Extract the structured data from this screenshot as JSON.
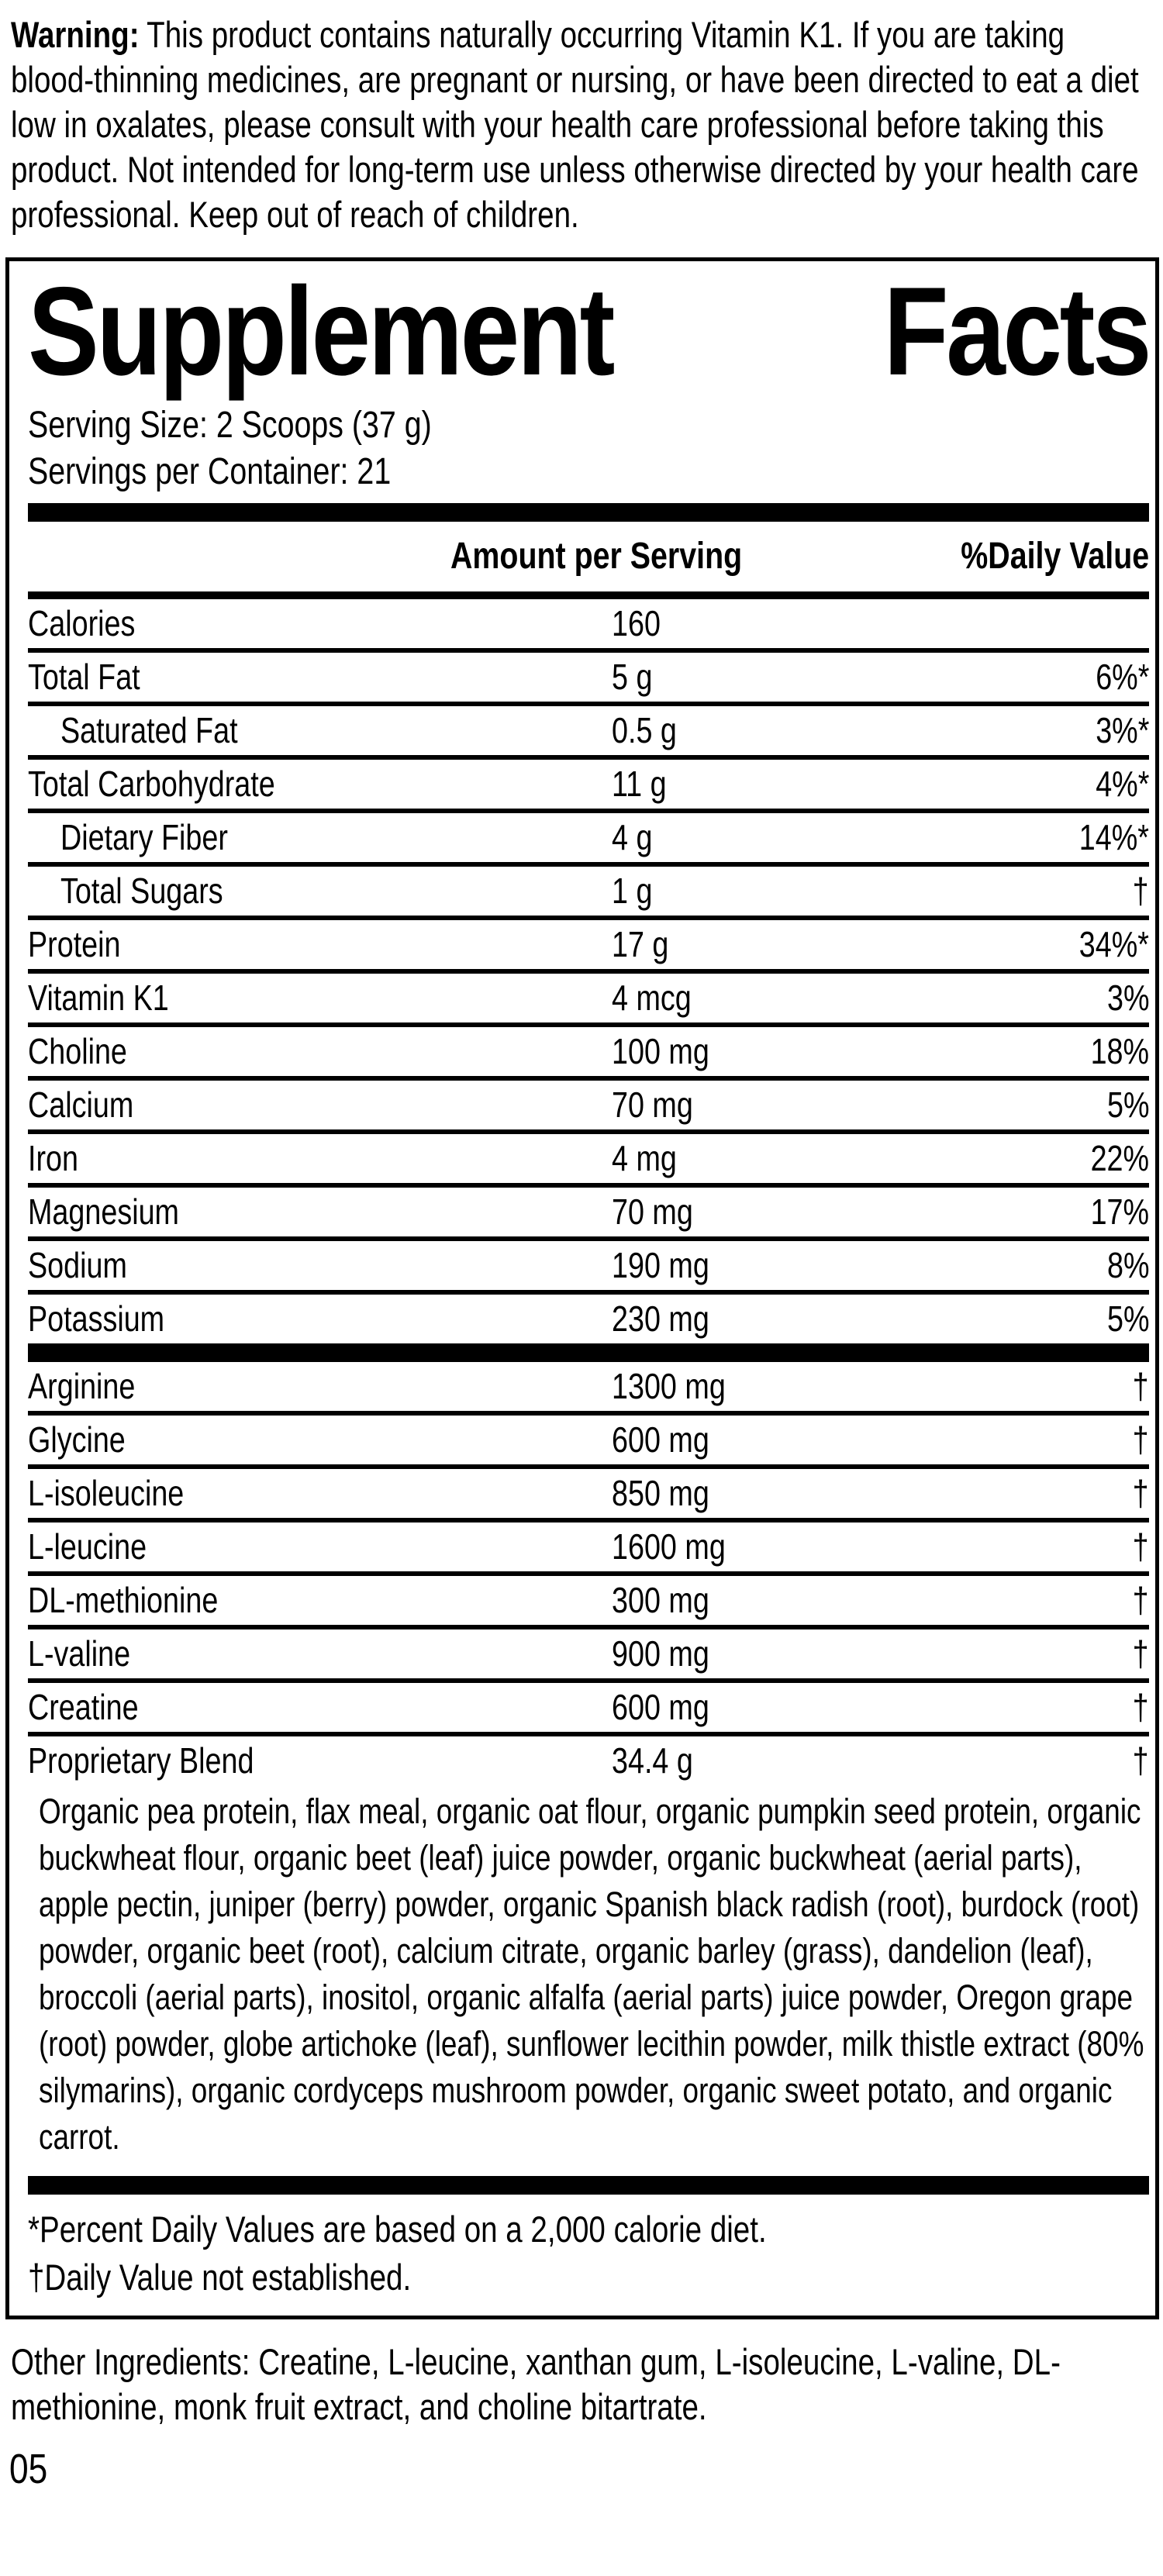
{
  "warning": {
    "label": "Warning:",
    "text": "This product contains naturally occurring Vitamin K1. If you are taking blood-thinning medicines, are pregnant or nursing, or have been directed to eat a diet low in oxalates, please consult with your health care professional before taking this product. Not intended for long-term use unless otherwise directed by your health care professional. Keep out of reach of children."
  },
  "panel": {
    "title": {
      "first": "Supplement",
      "second": "Facts"
    },
    "serving_size": "Serving Size: 2 Scoops (37 g)",
    "servings_per_container": "Servings per Container: 21",
    "columns": {
      "amount": "Amount per Serving",
      "dv": "%Daily Value"
    },
    "rows_main": [
      {
        "label": "Calories",
        "amount": "160",
        "dv": ""
      },
      {
        "label": "Total Fat",
        "amount": "5 g",
        "dv": "6%*"
      },
      {
        "label": "Saturated Fat",
        "amount": "0.5 g",
        "dv": "3%*",
        "indent": true
      },
      {
        "label": "Total Carbohydrate",
        "amount": "11 g",
        "dv": "4%*"
      },
      {
        "label": "Dietary Fiber",
        "amount": "4 g",
        "dv": "14%*",
        "indent": true
      },
      {
        "label": "Total Sugars",
        "amount": "1 g",
        "dv": "†",
        "indent": true
      },
      {
        "label": "Protein",
        "amount": "17 g",
        "dv": "34%*"
      },
      {
        "label": "Vitamin K1",
        "amount": "4 mcg",
        "dv": "3%"
      },
      {
        "label": "Choline",
        "amount": "100 mg",
        "dv": "18%"
      },
      {
        "label": "Calcium",
        "amount": "70 mg",
        "dv": "5%"
      },
      {
        "label": "Iron",
        "amount": "4 mg",
        "dv": "22%"
      },
      {
        "label": "Magnesium",
        "amount": "70 mg",
        "dv": "17%"
      },
      {
        "label": "Sodium",
        "amount": "190 mg",
        "dv": "8%"
      },
      {
        "label": "Potassium",
        "amount": "230 mg",
        "dv": "5%"
      }
    ],
    "rows_amino": [
      {
        "label": "Arginine",
        "amount": "1300 mg",
        "dv": "†"
      },
      {
        "label": "Glycine",
        "amount": "600 mg",
        "dv": "†"
      },
      {
        "label": "L-isoleucine",
        "amount": "850 mg",
        "dv": "†"
      },
      {
        "label": "L-leucine",
        "amount": "1600 mg",
        "dv": "†"
      },
      {
        "label": "DL-methionine",
        "amount": "300 mg",
        "dv": "†"
      },
      {
        "label": "L-valine",
        "amount": "900 mg",
        "dv": "†"
      },
      {
        "label": "Creatine",
        "amount": "600 mg",
        "dv": "†"
      },
      {
        "label": "Proprietary Blend",
        "amount": "34.4 g",
        "dv": "†"
      }
    ],
    "proprietary_blend_ingredients": "Organic pea protein, flax meal, organic oat flour, organic pumpkin seed protein, organic buckwheat flour, organic beet (leaf) juice powder, organic buckwheat (aerial parts), apple pectin, juniper (berry) powder, organic Spanish black radish (root), burdock (root) powder, organic beet (root), calcium citrate, organic barley (grass), dandelion (leaf), broccoli (aerial parts), inositol, organic alfalfa (aerial parts) juice powder, Oregon grape (root) powder, globe artichoke (leaf), sunflower lecithin powder, milk thistle extract (80% silymarins), organic cordyceps mushroom powder, organic sweet potato, and organic carrot.",
    "footnotes": [
      "*Percent Daily Values are based on a 2,000 calorie diet.",
      "†Daily Value not established."
    ]
  },
  "other_ingredients": "Other Ingredients: Creatine, L-leucine, xanthan gum, L-isoleucine, L-valine, DL-methionine, monk fruit extract, and choline bitartrate.",
  "page_number": "05"
}
